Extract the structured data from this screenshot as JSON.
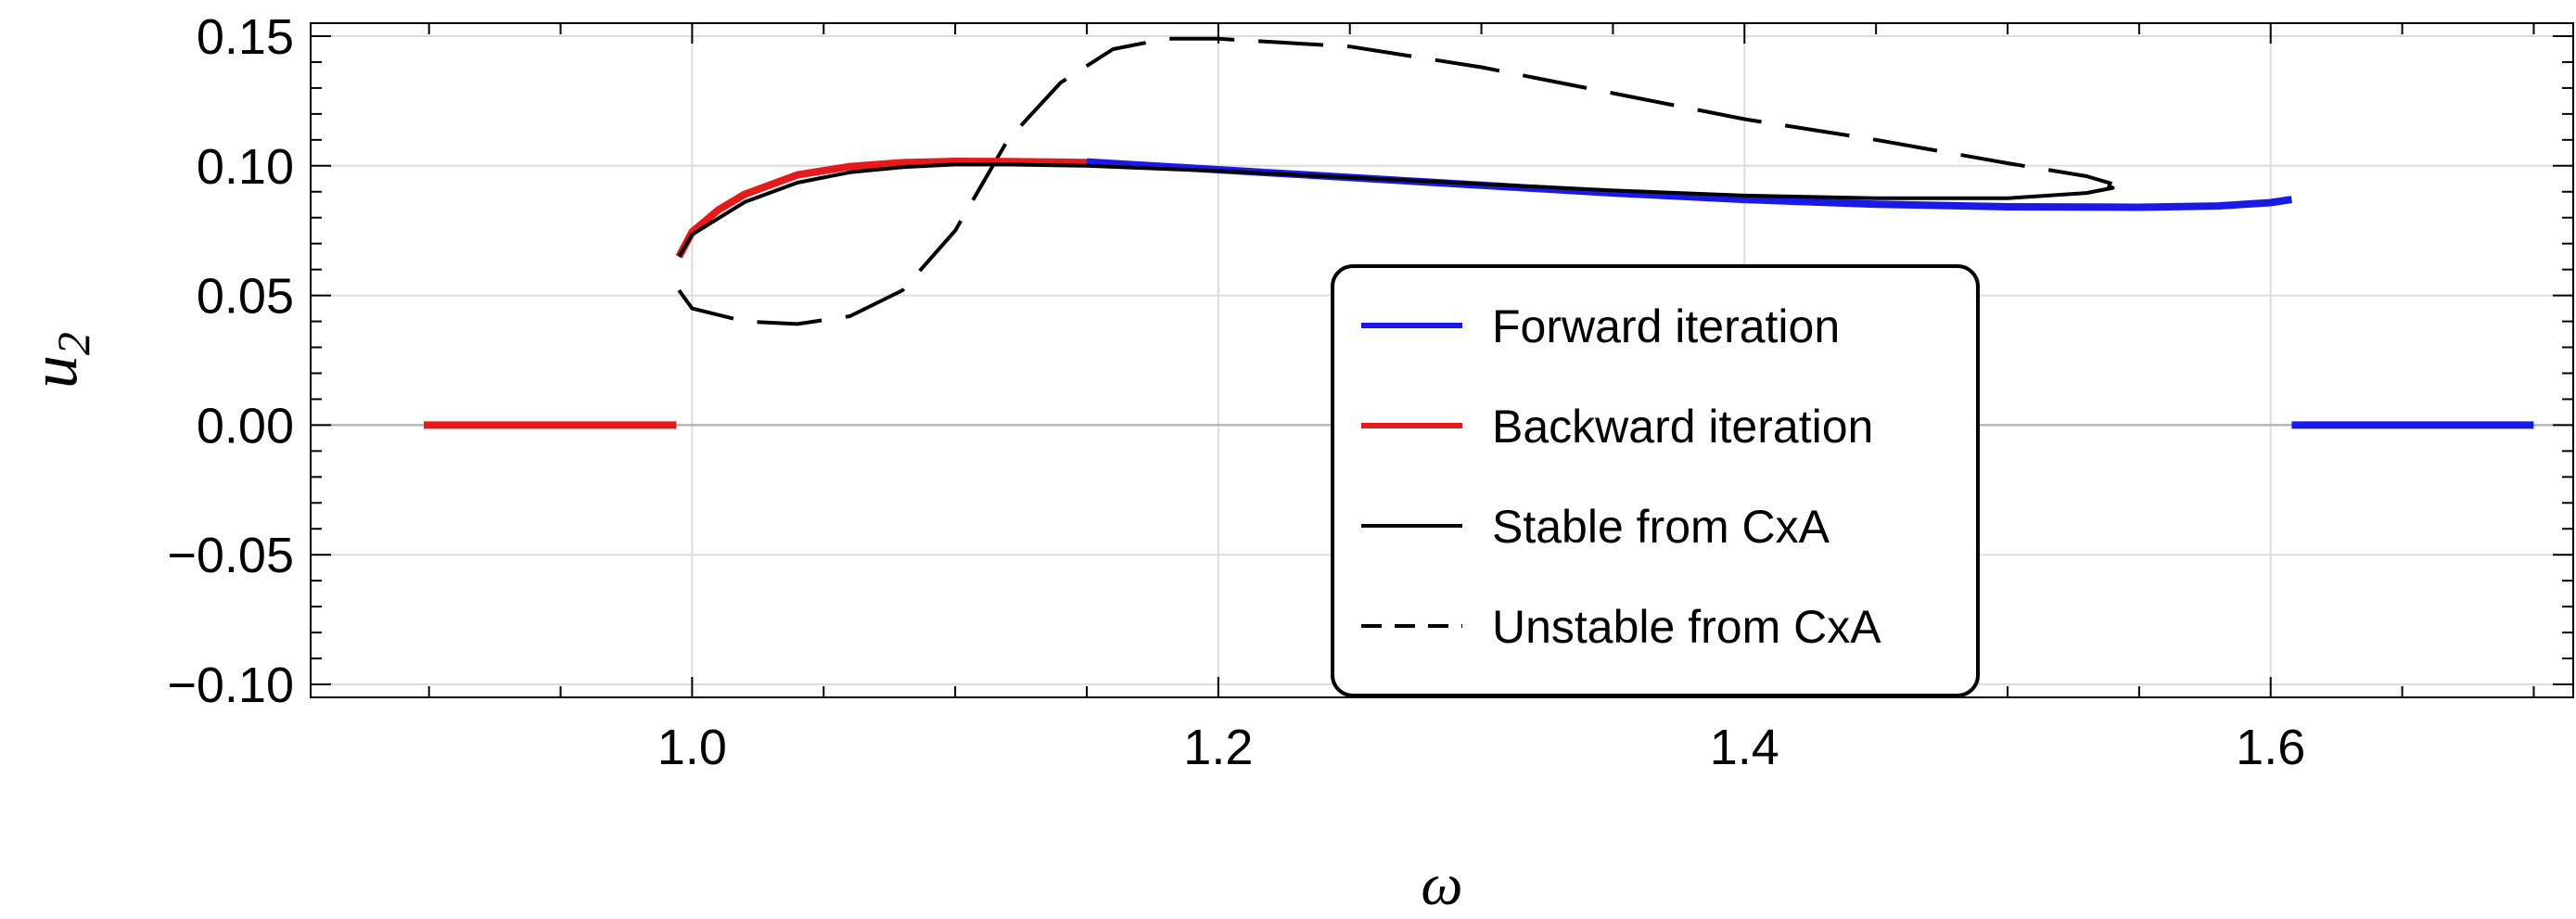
{
  "chart_data": {
    "type": "line",
    "title": "",
    "xlabel": "ω",
    "ylabel": "u",
    "ylabel_subscript": "2",
    "xlim": [
      0.855,
      1.715
    ],
    "ylim": [
      -0.105,
      0.155
    ],
    "x_ticks": [
      1.0,
      1.2,
      1.4,
      1.6
    ],
    "x_tick_labels": [
      "1.0",
      "1.2",
      "1.4",
      "1.6"
    ],
    "y_ticks": [
      -0.1,
      -0.05,
      0.0,
      0.05,
      0.1,
      0.15
    ],
    "y_tick_labels": [
      "−0.10",
      "−0.05",
      "0.00",
      "0.05",
      "0.10",
      "0.15"
    ],
    "grid": true,
    "legend_position": "center-right",
    "colors": {
      "forward": "#1a1ae6",
      "backward": "#e61a1a",
      "stable": "#000000",
      "unstable": "#000000",
      "grid": "#dcdcdc",
      "zero_line": "#aaaaaa"
    },
    "series": [
      {
        "name": "Forward iteration",
        "style": "solid",
        "segments": [
          {
            "x": [
              1.15,
              1.2,
              1.25,
              1.3,
              1.35,
              1.4,
              1.45,
              1.5,
              1.55,
              1.58,
              1.6,
              1.608
            ],
            "y": [
              0.1015,
              0.0985,
              0.0955,
              0.0925,
              0.0895,
              0.087,
              0.0852,
              0.0842,
              0.084,
              0.0845,
              0.0858,
              0.087
            ]
          },
          {
            "x": [
              1.608,
              1.7
            ],
            "y": [
              0.0,
              0.0
            ]
          }
        ]
      },
      {
        "name": "Backward iteration",
        "style": "solid",
        "segments": [
          {
            "x": [
              0.995,
              1.0,
              1.01,
              1.02,
              1.04,
              1.06,
              1.08,
              1.1,
              1.12,
              1.15
            ],
            "y": [
              0.065,
              0.0745,
              0.083,
              0.089,
              0.0965,
              0.0997,
              0.1012,
              0.1017,
              0.1016,
              0.1013
            ]
          },
          {
            "x": [
              0.898,
              0.994
            ],
            "y": [
              0.0,
              0.0
            ]
          }
        ]
      },
      {
        "name": "Stable from CxA",
        "style": "solid",
        "segments": [
          {
            "x": [
              0.995,
              1.0,
              1.02,
              1.04,
              1.06,
              1.08,
              1.1,
              1.12,
              1.15,
              1.2,
              1.25,
              1.3,
              1.35,
              1.4,
              1.45,
              1.5,
              1.53,
              1.54,
              1.538
            ],
            "y": [
              0.065,
              0.0735,
              0.086,
              0.0935,
              0.0975,
              0.0995,
              0.1005,
              0.1005,
              0.1,
              0.098,
              0.0955,
              0.093,
              0.0905,
              0.0885,
              0.0875,
              0.0875,
              0.0895,
              0.0915,
              0.0925
            ]
          }
        ]
      },
      {
        "name": "Unstable from CxA",
        "style": "dashed",
        "segments": [
          {
            "x": [
              0.995,
              1.0,
              1.02,
              1.04,
              1.06,
              1.08,
              1.1,
              1.12,
              1.14,
              1.16,
              1.18,
              1.2,
              1.25,
              1.3,
              1.35,
              1.4,
              1.45,
              1.5,
              1.53,
              1.54
            ],
            "y": [
              0.052,
              0.045,
              0.04,
              0.039,
              0.042,
              0.052,
              0.075,
              0.11,
              0.132,
              0.145,
              0.149,
              0.149,
              0.146,
              0.138,
              0.128,
              0.118,
              0.11,
              0.101,
              0.096,
              0.093
            ]
          }
        ]
      }
    ],
    "legend": [
      {
        "label": "Forward iteration",
        "key": "forward"
      },
      {
        "label": "Backward iteration",
        "key": "backward"
      },
      {
        "label": "Stable from CxA",
        "key": "stable"
      },
      {
        "label": "Unstable from CxA",
        "key": "unstable"
      }
    ]
  }
}
